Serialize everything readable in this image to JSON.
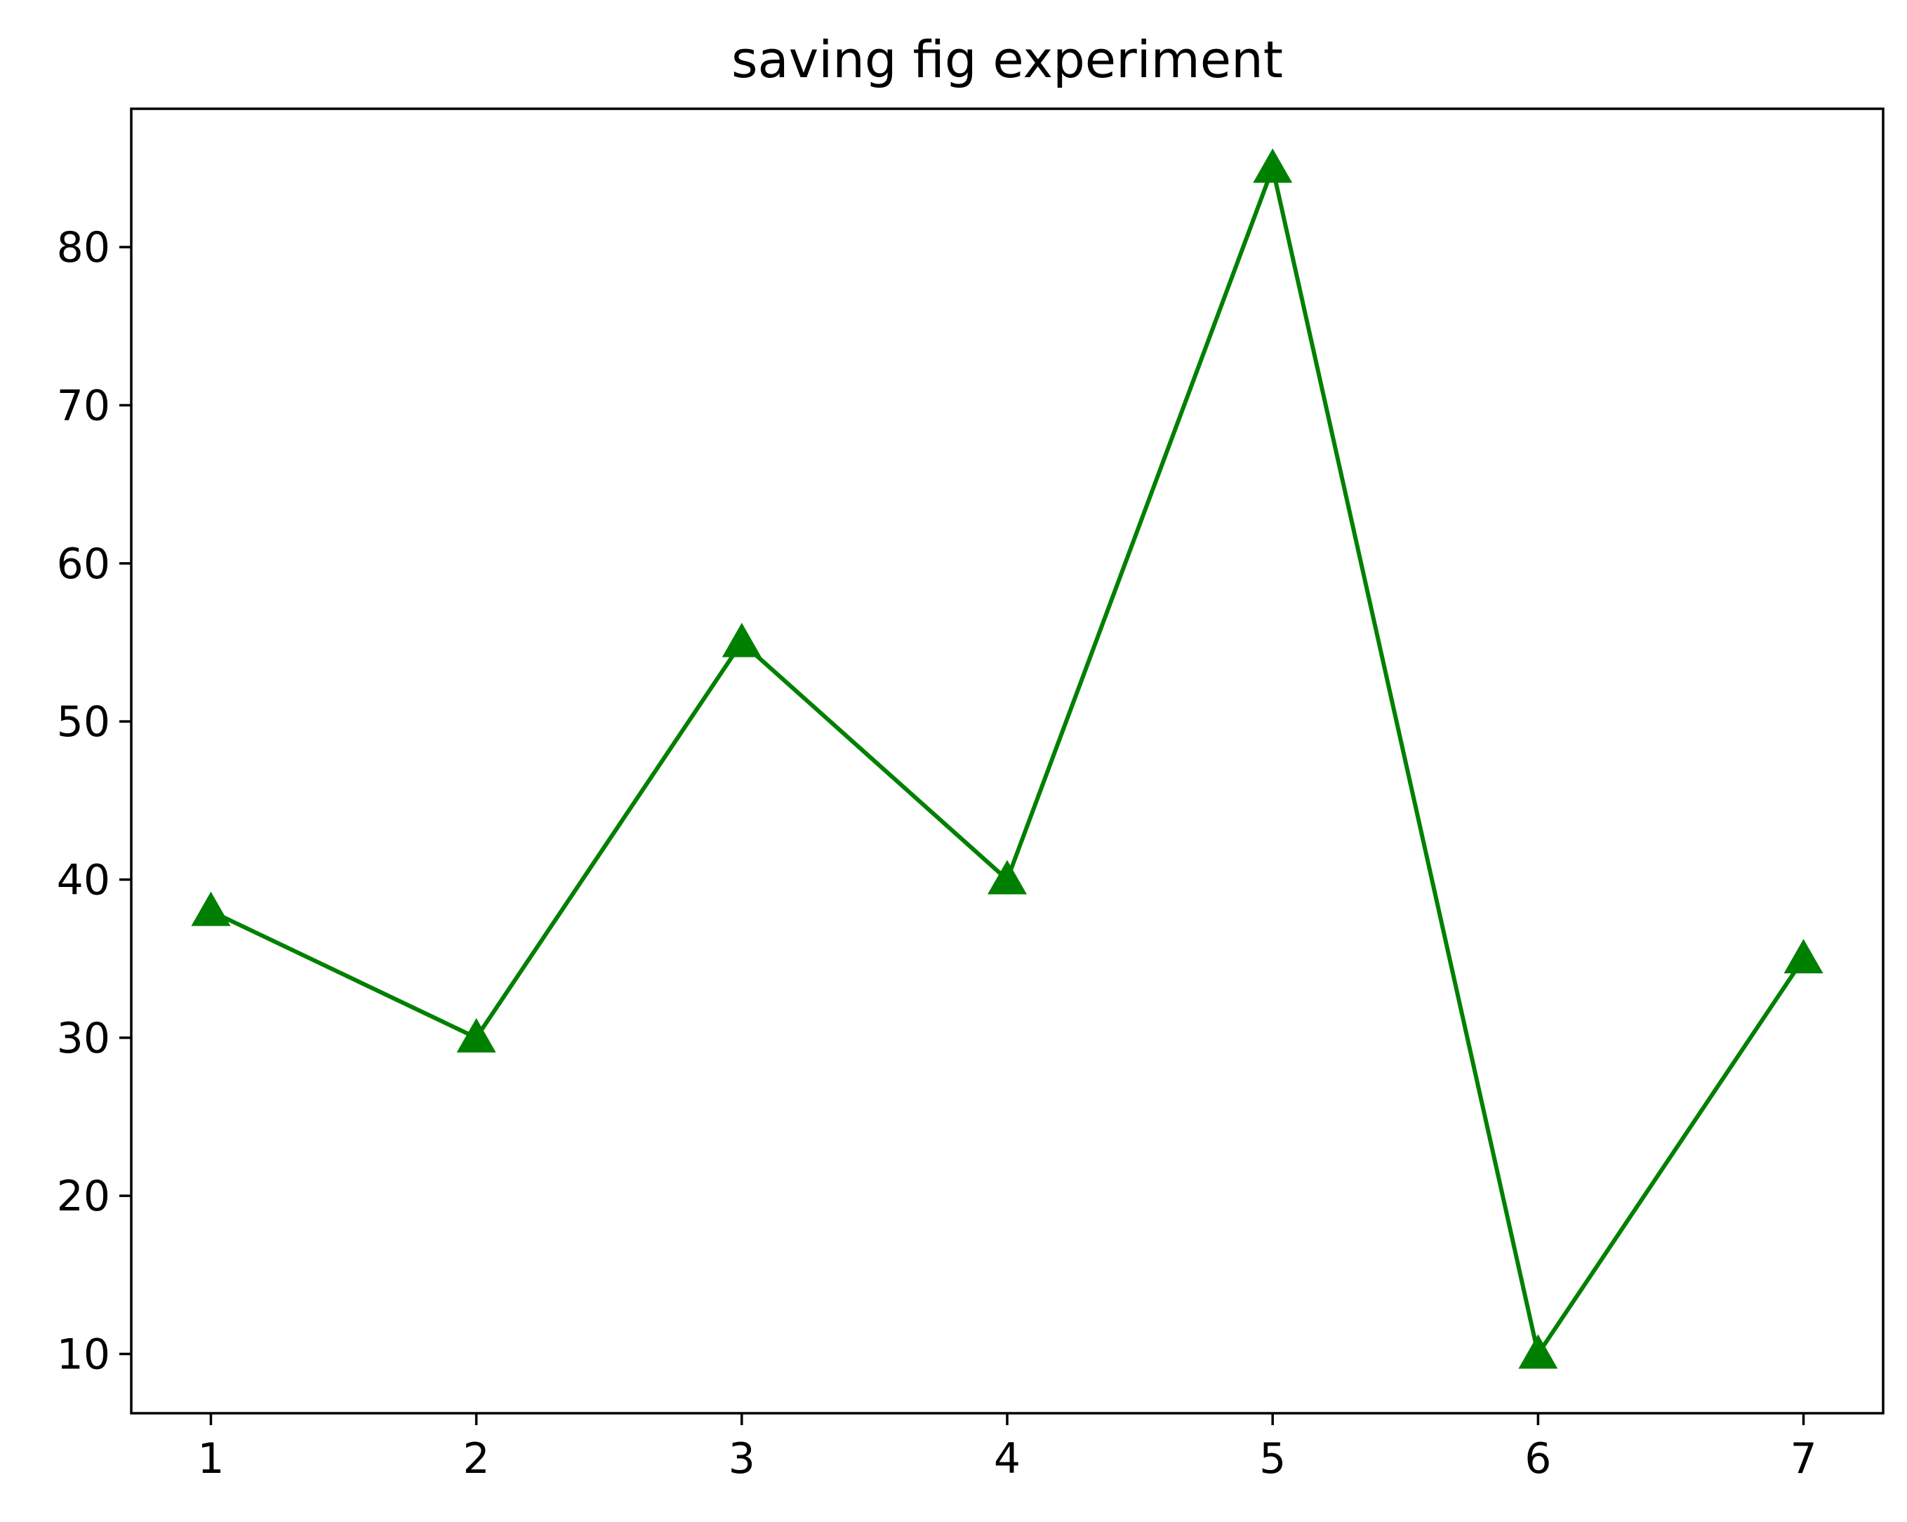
{
  "chart_data": {
    "type": "line",
    "title": "saving fig experiment",
    "xlabel": "",
    "ylabel": "",
    "x": [
      1,
      2,
      3,
      4,
      5,
      6,
      7
    ],
    "series": [
      {
        "values": [
          38,
          30,
          55,
          40,
          85,
          10,
          35
        ],
        "color": "#008000",
        "marker": "triangle-up"
      }
    ],
    "xlim": [
      0.7,
      7.3
    ],
    "ylim": [
      6.25,
      88.75
    ],
    "xticks": [
      1,
      2,
      3,
      4,
      5,
      6,
      7
    ],
    "yticks": [
      10,
      20,
      30,
      40,
      50,
      60,
      70,
      80
    ],
    "grid": false,
    "legend": "none"
  }
}
